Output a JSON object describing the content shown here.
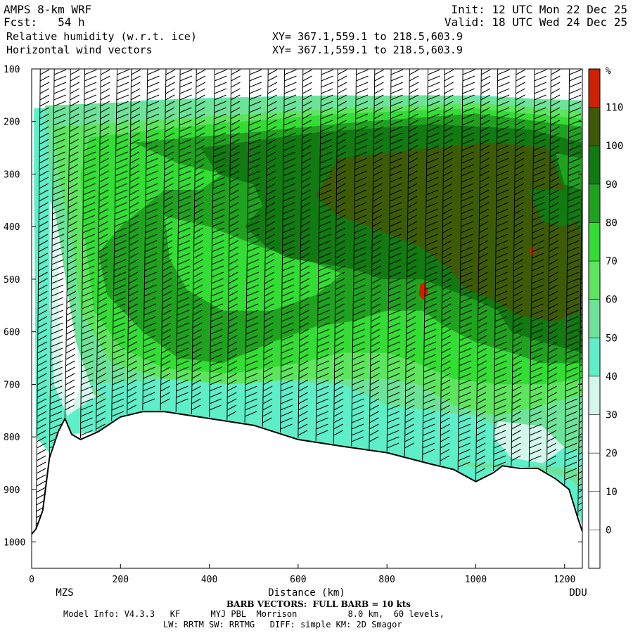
{
  "header": {
    "model": "AMPS 8-km WRF",
    "fcst": "Fcst:   54 h",
    "init": "Init: 12 UTC Mon 22 Dec 25",
    "valid": "Valid: 18 UTC Wed 24 Dec 25",
    "field1": "Relative humidity (w.r.t. ice)",
    "field2": "Horizontal wind vectors",
    "xy1": "XY= 367.1,559.1 to 218.5,603.9",
    "xy2": "XY= 367.1,559.1 to 218.5,603.9"
  },
  "footer": {
    "barb_note": "BARB VECTORS:  FULL BARB = 10 kts",
    "model_info": "Model Info: V4.3.3   KF      MYJ PBL  Morrison          8.0 km,  60 levels,",
    "model_info2": "LW: RRTM SW: RRTMG   DIFF: simple KM: 2D Smagor"
  },
  "chart_data": {
    "type": "heatmap",
    "title": "Relative humidity (w.r.t. ice)",
    "xlabel": "Distance (km)",
    "ylabel": "",
    "xlim": [
      0,
      1240
    ],
    "ylim": [
      1050,
      100
    ],
    "x_ticks": [
      0,
      200,
      400,
      600,
      800,
      1000,
      1200
    ],
    "y_ticks": [
      100,
      200,
      300,
      400,
      500,
      600,
      700,
      800,
      900,
      1000
    ],
    "endpoint_labels": {
      "left": "MZS",
      "right": "DDU"
    },
    "colorbar": {
      "unit": "%",
      "levels": [
        0,
        10,
        20,
        30,
        40,
        50,
        60,
        70,
        80,
        90,
        100,
        110
      ],
      "colors": [
        "#ffffff",
        "#ffffff",
        "#ffffff",
        "#d4f7ec",
        "#5eeec8",
        "#6de39a",
        "#5de65d",
        "#33dd33",
        "#1fa31f",
        "#117a11",
        "#3d5b05",
        "#cc2200"
      ]
    },
    "terrain_km_hpa": [
      [
        0,
        985
      ],
      [
        10,
        975
      ],
      [
        25,
        940
      ],
      [
        40,
        840
      ],
      [
        60,
        790
      ],
      [
        75,
        765
      ],
      [
        90,
        795
      ],
      [
        110,
        805
      ],
      [
        150,
        790
      ],
      [
        200,
        762
      ],
      [
        250,
        752
      ],
      [
        300,
        752
      ],
      [
        400,
        765
      ],
      [
        500,
        778
      ],
      [
        600,
        805
      ],
      [
        700,
        818
      ],
      [
        800,
        830
      ],
      [
        900,
        852
      ],
      [
        950,
        862
      ],
      [
        1000,
        885
      ],
      [
        1040,
        868
      ],
      [
        1060,
        855
      ],
      [
        1100,
        860
      ],
      [
        1140,
        860
      ],
      [
        1180,
        880
      ],
      [
        1210,
        900
      ],
      [
        1230,
        955
      ],
      [
        1240,
        980
      ]
    ],
    "rh_regions": [
      {
        "level": 40,
        "points": [
          [
            5,
            175
          ],
          [
            120,
            172
          ],
          [
            250,
            160
          ],
          [
            400,
            155
          ],
          [
            550,
            152
          ],
          [
            700,
            150
          ],
          [
            850,
            152
          ],
          [
            1000,
            150
          ],
          [
            1100,
            155
          ],
          [
            1180,
            160
          ],
          [
            1240,
            170
          ],
          [
            1240,
            970
          ],
          [
            1210,
            900
          ],
          [
            1140,
            860
          ],
          [
            1060,
            855
          ],
          [
            1000,
            885
          ],
          [
            950,
            862
          ],
          [
            800,
            830
          ],
          [
            600,
            805
          ],
          [
            400,
            765
          ],
          [
            300,
            752
          ],
          [
            200,
            762
          ],
          [
            150,
            790
          ],
          [
            90,
            795
          ],
          [
            70,
            770
          ],
          [
            40,
            830
          ],
          [
            10,
            800
          ],
          [
            5,
            300
          ]
        ]
      },
      {
        "level": 30,
        "points": [
          [
            40,
            350
          ],
          [
            70,
            400
          ],
          [
            100,
            500
          ],
          [
            120,
            620
          ],
          [
            150,
            720
          ],
          [
            80,
            760
          ],
          [
            50,
            700
          ],
          [
            40,
            550
          ]
        ]
      },
      {
        "level": 20,
        "points": [
          [
            60,
            380
          ],
          [
            80,
            500
          ],
          [
            100,
            600
          ],
          [
            110,
            700
          ],
          [
            90,
            750
          ],
          [
            70,
            700
          ],
          [
            60,
            550
          ]
        ]
      },
      {
        "level": 50,
        "points": [
          [
            30,
            170
          ],
          [
            300,
            160
          ],
          [
            600,
            152
          ],
          [
            900,
            150
          ],
          [
            1240,
            160
          ],
          [
            1240,
            900
          ],
          [
            1210,
            880
          ],
          [
            1100,
            850
          ],
          [
            1000,
            860
          ],
          [
            900,
            830
          ],
          [
            800,
            800
          ],
          [
            700,
            790
          ],
          [
            600,
            785
          ],
          [
            500,
            760
          ],
          [
            400,
            750
          ],
          [
            300,
            745
          ],
          [
            200,
            742
          ],
          [
            140,
            720
          ],
          [
            100,
            620
          ],
          [
            80,
            520
          ],
          [
            40,
            300
          ]
        ]
      },
      {
        "level": 40,
        "points": [
          [
            130,
            700
          ],
          [
            300,
            690
          ],
          [
            500,
            690
          ],
          [
            700,
            700
          ],
          [
            800,
            740
          ],
          [
            1000,
            760
          ],
          [
            1100,
            800
          ],
          [
            1240,
            830
          ],
          [
            1240,
            860
          ],
          [
            1000,
            850
          ],
          [
            800,
            830
          ],
          [
            600,
            800
          ],
          [
            400,
            760
          ],
          [
            200,
            750
          ]
        ]
      },
      {
        "level": 30,
        "points": [
          [
            1050,
            770
          ],
          [
            1150,
            780
          ],
          [
            1200,
            820
          ],
          [
            1150,
            850
          ],
          [
            1080,
            840
          ],
          [
            1040,
            800
          ]
        ]
      },
      {
        "level": 60,
        "points": [
          [
            50,
            210
          ],
          [
            400,
            190
          ],
          [
            700,
            175
          ],
          [
            1000,
            165
          ],
          [
            1240,
            180
          ],
          [
            1240,
            720
          ],
          [
            1150,
            740
          ],
          [
            1050,
            760
          ],
          [
            950,
            740
          ],
          [
            870,
            700
          ],
          [
            800,
            690
          ],
          [
            700,
            690
          ],
          [
            600,
            690
          ],
          [
            450,
            700
          ],
          [
            300,
            690
          ],
          [
            180,
            660
          ],
          [
            110,
            560
          ],
          [
            90,
            420
          ],
          [
            60,
            300
          ]
        ]
      },
      {
        "level": 70,
        "points": [
          [
            130,
            230
          ],
          [
            400,
            205
          ],
          [
            700,
            185
          ],
          [
            1000,
            175
          ],
          [
            1240,
            195
          ],
          [
            1240,
            690
          ],
          [
            1150,
            700
          ],
          [
            1050,
            700
          ],
          [
            950,
            690
          ],
          [
            870,
            660
          ],
          [
            800,
            640
          ],
          [
            700,
            640
          ],
          [
            600,
            660
          ],
          [
            450,
            680
          ],
          [
            300,
            670
          ],
          [
            200,
            630
          ],
          [
            140,
            560
          ],
          [
            120,
            420
          ],
          [
            110,
            300
          ]
        ]
      },
      {
        "level": 60,
        "points": [
          [
            200,
            400
          ],
          [
            300,
            360
          ],
          [
            400,
            390
          ],
          [
            500,
            430
          ],
          [
            600,
            470
          ],
          [
            700,
            480
          ],
          [
            660,
            560
          ],
          [
            550,
            600
          ],
          [
            420,
            620
          ],
          [
            320,
            600
          ],
          [
            240,
            560
          ],
          [
            190,
            480
          ]
        ]
      },
      {
        "level": 80,
        "points": [
          [
            230,
            240
          ],
          [
            500,
            220
          ],
          [
            750,
            200
          ],
          [
            1000,
            185
          ],
          [
            1240,
            210
          ],
          [
            1240,
            660
          ],
          [
            1150,
            660
          ],
          [
            1080,
            640
          ],
          [
            1000,
            620
          ],
          [
            930,
            590
          ],
          [
            880,
            560
          ],
          [
            800,
            560
          ],
          [
            720,
            580
          ],
          [
            640,
            590
          ],
          [
            540,
            620
          ],
          [
            430,
            660
          ],
          [
            330,
            650
          ],
          [
            250,
            600
          ],
          [
            170,
            530
          ],
          [
            150,
            450
          ],
          [
            200,
            400
          ],
          [
            300,
            330
          ],
          [
            380,
            330
          ],
          [
            430,
            300
          ],
          [
            330,
            280
          ]
        ]
      },
      {
        "level": 70,
        "points": [
          [
            300,
            380
          ],
          [
            400,
            400
          ],
          [
            520,
            440
          ],
          [
            640,
            470
          ],
          [
            700,
            490
          ],
          [
            640,
            530
          ],
          [
            540,
            560
          ],
          [
            430,
            560
          ],
          [
            350,
            520
          ],
          [
            310,
            460
          ]
        ]
      },
      {
        "level": 90,
        "points": [
          [
            380,
            250
          ],
          [
            650,
            220
          ],
          [
            900,
            205
          ],
          [
            1120,
            215
          ],
          [
            1240,
            240
          ],
          [
            1240,
            640
          ],
          [
            1150,
            620
          ],
          [
            1080,
            600
          ],
          [
            1050,
            560
          ],
          [
            1000,
            540
          ],
          [
            940,
            520
          ],
          [
            880,
            500
          ],
          [
            790,
            500
          ],
          [
            720,
            480
          ],
          [
            650,
            470
          ],
          [
            580,
            460
          ],
          [
            530,
            440
          ],
          [
            480,
            400
          ],
          [
            520,
            360
          ],
          [
            500,
            320
          ],
          [
            420,
            300
          ]
        ]
      },
      {
        "level": 100,
        "points": [
          [
            690,
            270
          ],
          [
            900,
            250
          ],
          [
            1050,
            240
          ],
          [
            1160,
            250
          ],
          [
            1200,
            330
          ],
          [
            1240,
            420
          ],
          [
            1240,
            560
          ],
          [
            1180,
            580
          ],
          [
            1100,
            570
          ],
          [
            1040,
            540
          ],
          [
            980,
            520
          ],
          [
            940,
            480
          ],
          [
            880,
            440
          ],
          [
            820,
            420
          ],
          [
            760,
            400
          ],
          [
            690,
            380
          ],
          [
            640,
            340
          ]
        ]
      },
      {
        "level": 90,
        "points": [
          [
            1120,
            330
          ],
          [
            1200,
            330
          ],
          [
            1240,
            380
          ],
          [
            1200,
            400
          ],
          [
            1150,
            390
          ]
        ]
      },
      {
        "level": 80,
        "points": [
          [
            1180,
            260
          ],
          [
            1240,
            270
          ],
          [
            1240,
            330
          ],
          [
            1200,
            320
          ]
        ]
      },
      {
        "level": 110,
        "points": [
          [
            875,
            510
          ],
          [
            885,
            505
          ],
          [
            893,
            525
          ],
          [
            882,
            540
          ],
          [
            872,
            530
          ]
        ]
      },
      {
        "level": 110,
        "points": [
          [
            1123,
            440
          ],
          [
            1131,
            438
          ],
          [
            1133,
            452
          ],
          [
            1124,
            455
          ]
        ]
      }
    ],
    "wind_barb_columns_km": [
      10,
      40,
      75,
      110,
      145,
      180,
      215,
      250,
      290,
      325,
      360,
      400,
      440,
      480,
      520,
      560,
      600,
      640,
      680,
      720,
      760,
      800,
      840,
      880,
      920,
      960,
      1000,
      1040,
      1080,
      1120,
      1160,
      1200,
      1230
    ],
    "wind_note": "BARB VECTORS:  FULL BARB = 10 kts"
  }
}
